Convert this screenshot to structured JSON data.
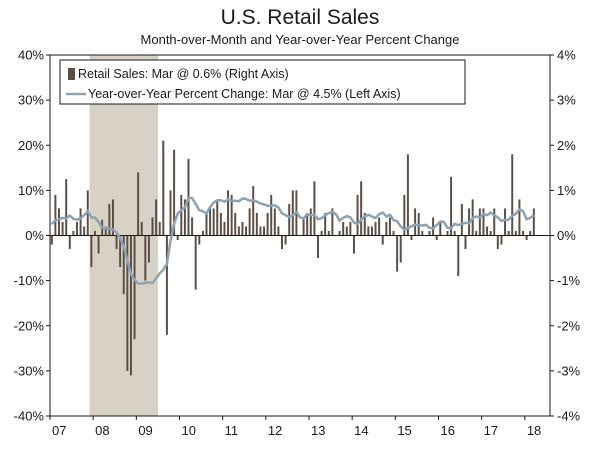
{
  "chart_data": {
    "type": "bar+line",
    "title": "U.S. Retail Sales",
    "subtitle": "Month-over-Month and Year-over-Year Percent Change",
    "x_start": "2007-01",
    "x_ticks": [
      "07",
      "08",
      "09",
      "10",
      "11",
      "12",
      "13",
      "14",
      "15",
      "16",
      "17",
      "18"
    ],
    "left_axis": {
      "ylim": [
        -40,
        40
      ],
      "ticks": [
        "40%",
        "30%",
        "20%",
        "10%",
        "0%",
        "-10%",
        "-20%",
        "-30%",
        "-40%"
      ]
    },
    "right_axis": {
      "ylim": [
        -4,
        4
      ],
      "ticks": [
        "4%",
        "3%",
        "2%",
        "1%",
        "0%",
        "-1%",
        "-2%",
        "-3%",
        "-4%"
      ]
    },
    "recession_shade": {
      "start": "2007-12",
      "end": "2009-06"
    },
    "legend": {
      "position": "top-left",
      "entries": [
        "Retail Sales: Mar @ 0.6% (Right Axis)",
        "Year-over-Year Percent Change: Mar @ 4.5% (Left Axis)"
      ]
    },
    "series": [
      {
        "name": "Retail Sales: Mar @ 0.6% (Right Axis)",
        "type": "bar",
        "axis": "right",
        "color": "#5b4f45",
        "values": [
          -0.2,
          0.9,
          0.6,
          0.3,
          1.25,
          -0.3,
          0.1,
          0.3,
          0.6,
          0.2,
          1.0,
          -0.7,
          0.1,
          -0.4,
          0.35,
          0.2,
          0.7,
          0.8,
          -0.3,
          -0.7,
          -1.3,
          -3.0,
          -3.1,
          -2.3,
          1.4,
          0.3,
          -1.0,
          -0.6,
          0.4,
          0.8,
          0.3,
          2.1,
          -2.2,
          1.0,
          1.9,
          -0.1,
          0.9,
          0.8,
          1.7,
          0.4,
          -1.2,
          -0.2,
          0.1,
          0.5,
          0.6,
          0.6,
          0.8,
          0.5,
          0.3,
          1.0,
          0.9,
          0.5,
          0.2,
          0.3,
          0.2,
          0.6,
          1.1,
          0.5,
          0.2,
          0.2,
          0.5,
          0.9,
          0.6,
          0.2,
          -0.3,
          -0.2,
          0.7,
          1.0,
          1.0,
          0.0,
          0.4,
          0.5,
          0.6,
          1.2,
          -0.5,
          0.1,
          0.5,
          0.1,
          0.6,
          0.0,
          0.1,
          0.3,
          0.2,
          0.3,
          -0.4,
          0.9,
          1.2,
          0.5,
          0.2,
          0.2,
          0.3,
          0.4,
          -0.2,
          0.3,
          0.4,
          0.1,
          -0.8,
          -0.6,
          0.9,
          1.8,
          -0.1,
          0.6,
          0.5,
          0.1,
          0.0,
          0.1,
          0.4,
          -0.1,
          0.3,
          0.0,
          0.1,
          1.3,
          0.1,
          -0.9,
          0.7,
          -0.3,
          0.6,
          0.8,
          0.1,
          0.6,
          0.6,
          0.2,
          0.1,
          0.6,
          -0.3,
          -0.2,
          0.6,
          0.1,
          1.8,
          0.1,
          0.8,
          0.1,
          -0.1,
          0.1,
          0.6
        ]
      },
      {
        "name": "Year-over-Year Percent Change: Mar @ 4.5% (Left Axis)",
        "type": "line",
        "axis": "left",
        "color": "#8ba3b4",
        "values": [
          2.5,
          3.4,
          3.6,
          3.9,
          3.8,
          4.4,
          3.7,
          3.5,
          3.8,
          4.5,
          5.4,
          4.0,
          4.0,
          3.0,
          1.7,
          1.7,
          1.5,
          1.3,
          0.7,
          -0.6,
          -2.4,
          -5.5,
          -8.5,
          -9.8,
          -10.6,
          -10.7,
          -10.5,
          -10.4,
          -10.5,
          -9.5,
          -8.4,
          -7.6,
          -6.2,
          -1.2,
          2.6,
          4.9,
          5.6,
          6.2,
          8.3,
          8.3,
          7.0,
          5.6,
          5.4,
          4.9,
          6.3,
          7.3,
          7.8,
          7.8,
          7.5,
          8.0,
          7.7,
          7.7,
          7.6,
          8.2,
          8.1,
          7.7,
          7.8,
          7.5,
          7.1,
          6.9,
          6.6,
          6.6,
          6.7,
          6.2,
          4.9,
          4.5,
          4.1,
          4.5,
          5.2,
          4.0,
          3.8,
          4.7,
          4.5,
          4.6,
          3.6,
          3.8,
          4.5,
          5.0,
          5.2,
          4.7,
          3.3,
          3.9,
          4.3,
          4.0,
          2.9,
          2.5,
          3.6,
          4.2,
          4.6,
          4.2,
          3.9,
          4.7,
          5.1,
          4.2,
          4.6,
          3.4,
          3.2,
          2.0,
          1.3,
          1.7,
          2.0,
          2.4,
          2.3,
          2.2,
          2.4,
          1.7,
          1.6,
          2.3,
          3.1,
          3.0,
          1.7,
          1.6,
          2.6,
          2.3,
          2.6,
          2.8,
          2.7,
          3.9,
          4.2,
          4.0,
          4.8,
          4.5,
          5.1,
          4.5,
          4.0,
          3.2,
          3.5,
          3.5,
          4.4,
          4.8,
          5.8,
          5.4,
          3.6,
          3.9,
          4.5
        ]
      }
    ]
  }
}
